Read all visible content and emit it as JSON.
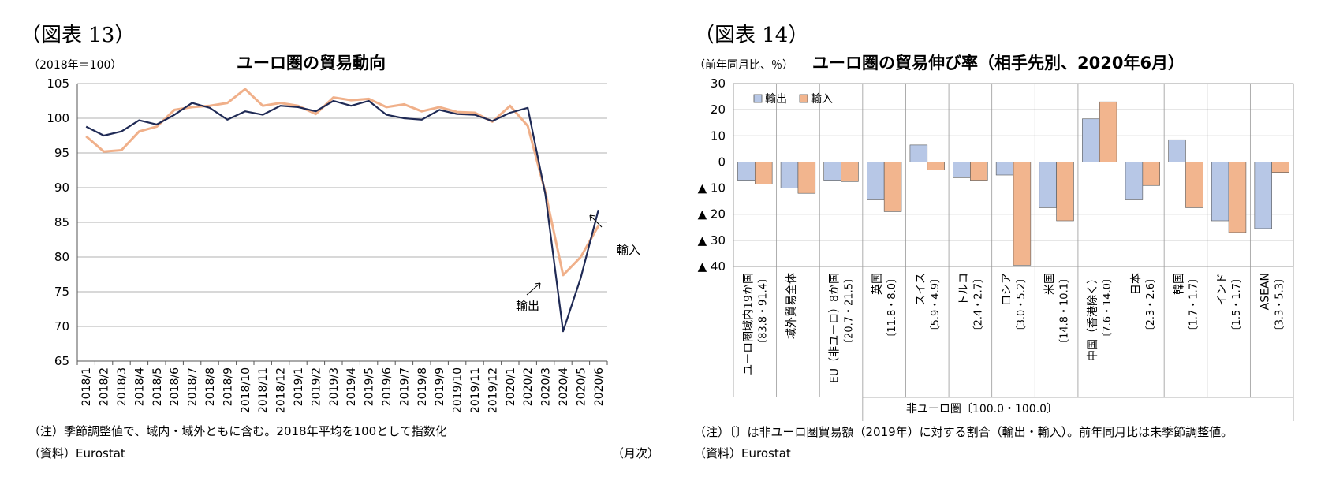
{
  "left": {
    "figure_label": "（図表 13）",
    "unit_label": "（2018年＝100）",
    "period_label": "（月次）",
    "note": "（注）季節調整値で、域内・域外ともに含む。2018年平均を100として指数化",
    "source": "（資料）Eurostat",
    "annotations": {
      "import": "輸入",
      "export": "輸出"
    },
    "colors": {
      "export": "#1f2a55",
      "import": "#f0b08a"
    }
  },
  "right": {
    "figure_label": "（図表 14）",
    "unit_label": "（前年同月比、％）",
    "group_label": "非ユーロ圏〔100.0・100.0〕",
    "note": "（注）〔〕は非ユーロ圏貿易額（2019年）に対する割合（輸出・輸入）。前年同月比は未季節調整値。",
    "source": "（資料）Eurostat",
    "colors": {
      "export": "#b7c7e6",
      "import": "#f2b58e"
    }
  },
  "chart_data": [
    {
      "type": "line",
      "title": "ユーロ圏の貿易動向",
      "x": [
        "2018/1",
        "2018/2",
        "2018/3",
        "2018/4",
        "2018/5",
        "2018/6",
        "2018/7",
        "2018/8",
        "2018/9",
        "2018/10",
        "2018/11",
        "2018/12",
        "2019/1",
        "2019/2",
        "2019/3",
        "2019/4",
        "2019/5",
        "2019/6",
        "2019/7",
        "2019/8",
        "2019/9",
        "2019/10",
        "2019/11",
        "2019/12",
        "2020/1",
        "2020/2",
        "2020/3",
        "2020/4",
        "2020/5",
        "2020/6"
      ],
      "ylim": [
        65,
        105
      ],
      "yticks": [
        65,
        70,
        75,
        80,
        85,
        90,
        95,
        100,
        105
      ],
      "series": [
        {
          "name": "輸出",
          "values": [
            98.8,
            97.5,
            98.1,
            99.7,
            99.1,
            100.5,
            102.2,
            101.5,
            99.8,
            101.0,
            100.5,
            101.8,
            101.6,
            101.0,
            102.5,
            101.8,
            102.5,
            100.5,
            100.0,
            99.8,
            101.2,
            100.6,
            100.5,
            99.6,
            100.8,
            101.5,
            89.0,
            69.3,
            77.0,
            86.8
          ]
        },
        {
          "name": "輸入",
          "values": [
            97.4,
            95.2,
            95.4,
            98.1,
            98.8,
            101.2,
            101.6,
            101.8,
            102.2,
            104.2,
            101.8,
            102.2,
            101.8,
            100.6,
            103.0,
            102.6,
            102.8,
            101.6,
            102.0,
            101.0,
            101.6,
            100.9,
            100.8,
            99.5,
            101.8,
            98.9,
            89.3,
            77.4,
            80.0,
            84.5
          ]
        }
      ]
    },
    {
      "type": "bar",
      "title": "ユーロ圏の貿易伸び率（相手先別、2020年6月）",
      "categories": [
        [
          "ユーロ圏域内19か国",
          "〔83.8・91.4〕"
        ],
        [
          "域外貿易全体",
          ""
        ],
        [
          "EU（非ユーロ）8か国",
          "〔20.7・21.5〕"
        ],
        [
          "英国",
          "〔11.8・8.0〕"
        ],
        [
          "スイス",
          "〔5.9・4.9〕"
        ],
        [
          "トルコ",
          "〔2.4・2.7〕"
        ],
        [
          "ロシア",
          "〔3.0・5.2〕"
        ],
        [
          "米国",
          "〔14.8・10.1〕"
        ],
        [
          "中国（香港除く）",
          "〔7.6・14.0〕"
        ],
        [
          "日本",
          "〔2.3・2.6〕"
        ],
        [
          "韓国",
          "〔1.7・1.7〕"
        ],
        [
          "インド",
          "〔1.5・1.7〕"
        ],
        [
          "ASEAN",
          "〔3.3・5.3〕"
        ]
      ],
      "ylim": [
        -40,
        30
      ],
      "yticks": [
        {
          "value": 30,
          "label": "30"
        },
        {
          "value": 20,
          "label": "20"
        },
        {
          "value": 10,
          "label": "10"
        },
        {
          "value": 0,
          "label": "0"
        },
        {
          "value": -10,
          "label": "▲ 10"
        },
        {
          "value": -20,
          "label": "▲ 20"
        },
        {
          "value": -30,
          "label": "▲ 30"
        },
        {
          "value": -40,
          "label": "▲ 40"
        }
      ],
      "legend_position": "top-left",
      "series": [
        {
          "name": "輸出",
          "values": [
            -7.0,
            -10.0,
            -7.0,
            -14.5,
            6.5,
            -6.0,
            -5.0,
            -17.5,
            16.5,
            -14.5,
            8.5,
            -22.5,
            -25.5
          ]
        },
        {
          "name": "輸入",
          "values": [
            -8.5,
            -12.0,
            -7.5,
            -19.0,
            -3.0,
            -7.0,
            -39.5,
            -22.5,
            23.0,
            -9.0,
            -17.5,
            -27.0,
            -4.0
          ]
        }
      ]
    }
  ]
}
